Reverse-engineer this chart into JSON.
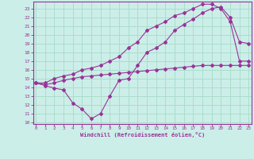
{
  "xlabel": "Windchill (Refroidissement éolien,°C)",
  "bg_color": "#cceee8",
  "grid_color": "#aaddcc",
  "line_color": "#993399",
  "line1_x": [
    0,
    1,
    2,
    3,
    4,
    5,
    6,
    7,
    8,
    9,
    10,
    11,
    12,
    13,
    14,
    15,
    16,
    17,
    18,
    19,
    20,
    21,
    22,
    23
  ],
  "line1_y": [
    14.5,
    14.3,
    14.5,
    14.8,
    15.0,
    15.2,
    15.3,
    15.4,
    15.5,
    15.6,
    15.7,
    15.8,
    15.9,
    16.0,
    16.1,
    16.2,
    16.3,
    16.4,
    16.5,
    16.5,
    16.5,
    16.5,
    16.5,
    16.5
  ],
  "line2_x": [
    0,
    1,
    2,
    3,
    4,
    5,
    6,
    7,
    8,
    9,
    10,
    11,
    12,
    13,
    14,
    15,
    16,
    17,
    18,
    19,
    20,
    21,
    22,
    23
  ],
  "line2_y": [
    14.5,
    14.2,
    13.9,
    13.7,
    12.2,
    11.5,
    10.4,
    11.0,
    13.0,
    14.8,
    15.0,
    16.5,
    18.0,
    18.5,
    19.2,
    20.5,
    21.2,
    21.8,
    22.5,
    23.0,
    23.2,
    22.0,
    19.2,
    19.0
  ],
  "line3_x": [
    0,
    1,
    2,
    3,
    4,
    5,
    6,
    7,
    8,
    9,
    10,
    11,
    12,
    13,
    14,
    15,
    16,
    17,
    18,
    19,
    20,
    21,
    22,
    23
  ],
  "line3_y": [
    14.5,
    14.5,
    15.0,
    15.3,
    15.5,
    16.0,
    16.2,
    16.5,
    17.0,
    17.5,
    18.5,
    19.2,
    20.5,
    21.0,
    21.5,
    22.2,
    22.5,
    23.0,
    23.5,
    23.5,
    23.0,
    21.5,
    17.0,
    17.0
  ],
  "xlim": [
    -0.3,
    23.3
  ],
  "ylim": [
    9.8,
    23.8
  ],
  "yticks": [
    10,
    11,
    12,
    13,
    14,
    15,
    16,
    17,
    18,
    19,
    20,
    21,
    22,
    23
  ],
  "xticks": [
    0,
    1,
    2,
    3,
    4,
    5,
    6,
    7,
    8,
    9,
    10,
    11,
    12,
    13,
    14,
    15,
    16,
    17,
    18,
    19,
    20,
    21,
    22,
    23
  ]
}
